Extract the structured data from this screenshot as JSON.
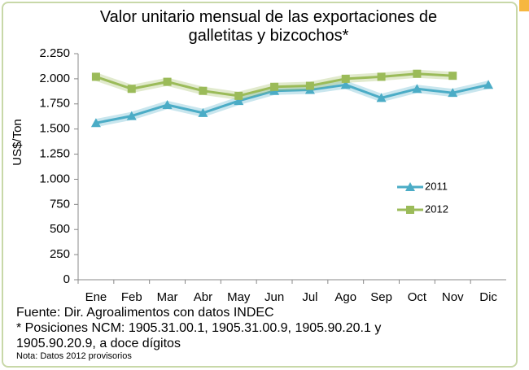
{
  "chart_data": {
    "type": "line",
    "title": "Valor unitario mensual de las exportaciones de galletitas y bizcochos*",
    "y_label": "US$/Ton",
    "categories": [
      "Ene",
      "Feb",
      "Mar",
      "Abr",
      "May",
      "Jun",
      "Jul",
      "Ago",
      "Sep",
      "Oct",
      "Nov",
      "Dic"
    ],
    "series": [
      {
        "name": "2011",
        "color": "#4bacc6",
        "marker": "triangle",
        "values": [
          1560,
          1630,
          1740,
          1660,
          1780,
          1880,
          1890,
          1940,
          1810,
          1900,
          1860,
          1940
        ]
      },
      {
        "name": "2012",
        "color": "#9bbb59",
        "marker": "square",
        "values": [
          2020,
          1900,
          1970,
          1880,
          1830,
          1920,
          1930,
          2000,
          2020,
          2050,
          2030,
          null
        ]
      }
    ],
    "ylim": [
      0,
      2250
    ],
    "yticks": [
      0,
      250,
      500,
      750,
      {
        "value": 1000,
        "label": "1.000"
      },
      {
        "value": 1250,
        "label": "1.250"
      },
      {
        "value": 1500,
        "label": "1.500"
      },
      {
        "value": 1750,
        "label": "1.750"
      },
      {
        "value": 2000,
        "label": "2.000"
      },
      {
        "value": 2250,
        "label": "2.250"
      }
    ],
    "notes": [
      "Fuente: Dir. Agroalimentos con datos INDEC",
      "* Posiciones NCM:  1905.31.00.1, 1905.31.00.9, 1905.90.20.1 y 1905.90.20.9, a doce dígitos"
    ],
    "small_note": "Nota: Datos 2012 provisorios"
  }
}
